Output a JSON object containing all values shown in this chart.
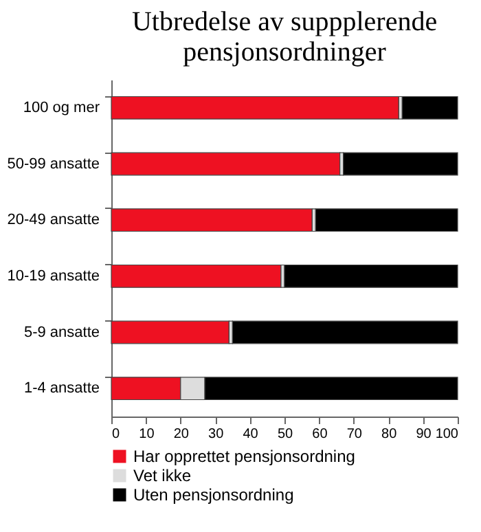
{
  "chart_data": {
    "type": "bar",
    "orientation": "horizontal",
    "stacked": true,
    "title": "Utbredelse av suppplerende pensjonsordninger",
    "categories": [
      "100 og mer",
      "50-99 ansatte",
      "20-49 ansatte",
      "10-19 ansatte",
      "5-9 ansatte",
      "1-4 ansatte"
    ],
    "series": [
      {
        "name": "Har opprettet pensjonsordning",
        "color": "#ee1122",
        "values": [
          83,
          66,
          58,
          49,
          34,
          20
        ]
      },
      {
        "name": "Vet ikke",
        "color": "#dddddd",
        "values": [
          1,
          1,
          1,
          1,
          1,
          7
        ]
      },
      {
        "name": "Uten pensjonsordning",
        "color": "#000000",
        "values": [
          16,
          33,
          41,
          50,
          65,
          73
        ]
      }
    ],
    "xlim": [
      0,
      100
    ],
    "xticks": [
      0,
      10,
      20,
      30,
      40,
      50,
      60,
      70,
      80,
      90,
      100
    ],
    "grid": false,
    "legend": "bottom"
  }
}
